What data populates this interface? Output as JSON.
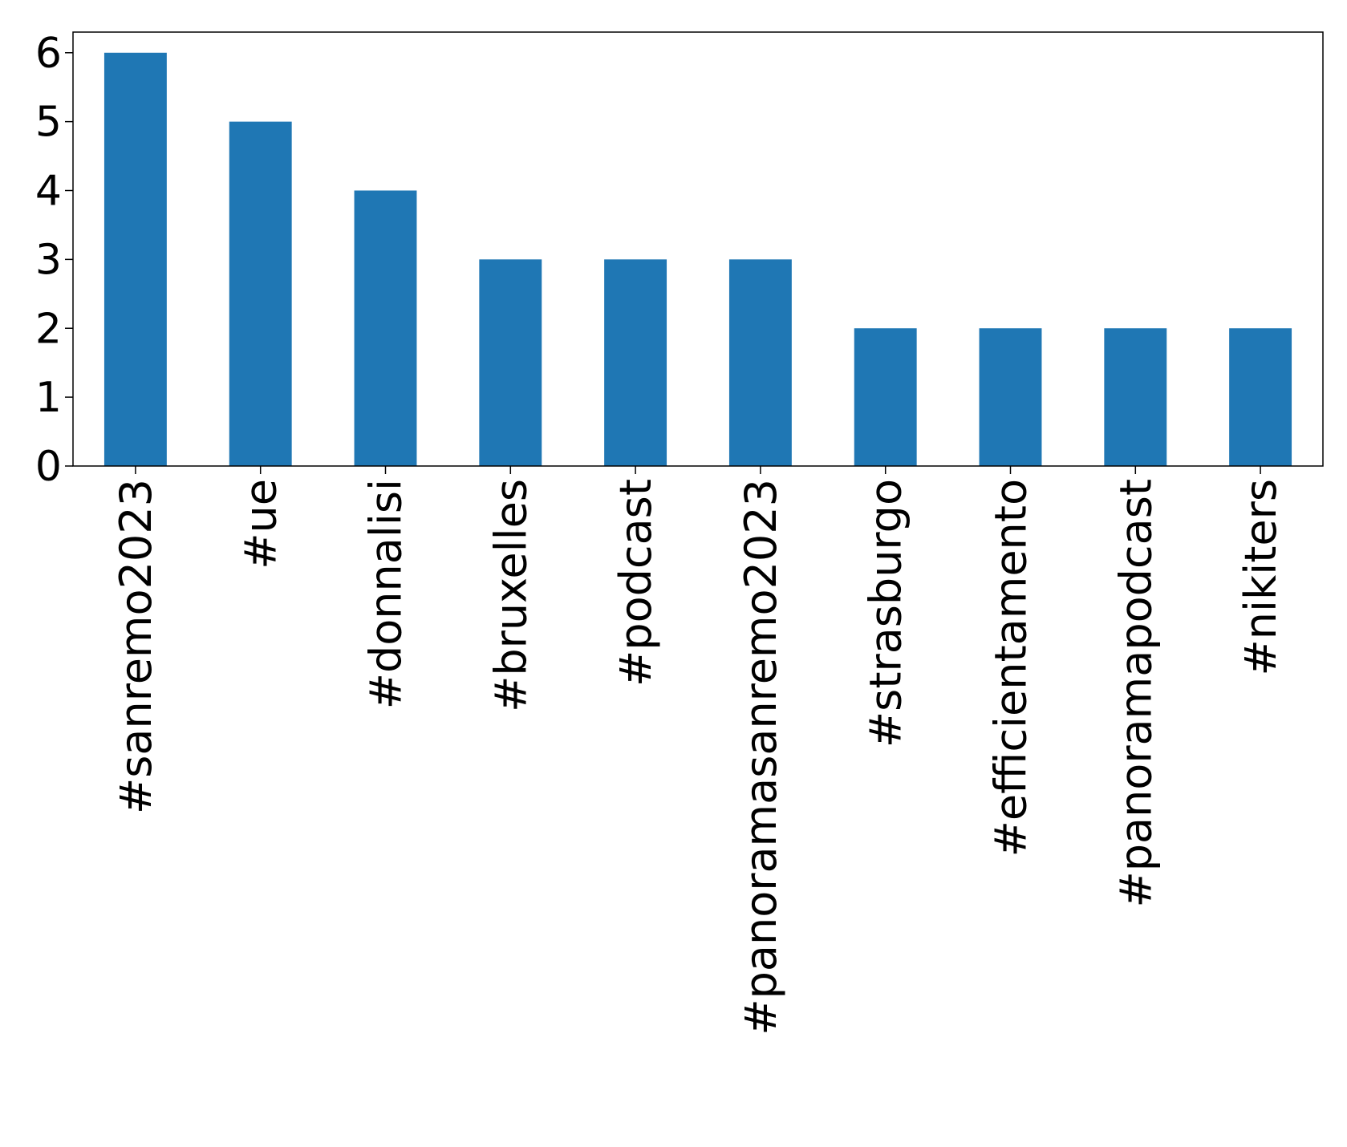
{
  "chart_data": {
    "type": "bar",
    "categories": [
      "#sanremo2023",
      "#ue",
      "#donnalisi",
      "#bruxelles",
      "#podcast",
      "#panoramasanremo2023",
      "#strasburgo",
      "#efficientamento",
      "#panoramapodcast",
      "#nikiters"
    ],
    "values": [
      6,
      5,
      4,
      3,
      3,
      3,
      2,
      2,
      2,
      2
    ],
    "color": "#1f77b4",
    "ylim": [
      0,
      6.3
    ],
    "yticks": [
      0,
      1,
      2,
      3,
      4,
      5,
      6
    ],
    "grid": false
  }
}
